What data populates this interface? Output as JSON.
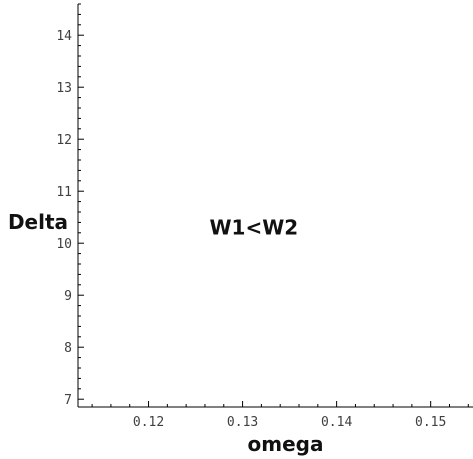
{
  "chart_data": {
    "type": "scatter",
    "title": "",
    "xlabel": "omega",
    "ylabel": "Delta",
    "xlim": [
      0.1125,
      0.1545
    ],
    "ylim": [
      6.85,
      14.6
    ],
    "x_ticks": [
      0.12,
      0.13,
      0.14,
      0.15
    ],
    "x_tick_labels": [
      "0.12",
      "0.13",
      "0.14",
      "0.15"
    ],
    "y_ticks": [
      7,
      8,
      9,
      10,
      11,
      12,
      13,
      14
    ],
    "y_tick_labels": [
      "7",
      "8",
      "9",
      "10",
      "11",
      "12",
      "13",
      "14"
    ],
    "x_minor_step": 0.002,
    "y_minor_step": 0.2,
    "series": [],
    "annotations": [
      {
        "text": "W1<W2",
        "x": 0.1312,
        "y": 10.3
      }
    ],
    "grid": false,
    "colors": {
      "axis": "#000000",
      "text": "#111111",
      "tick_label": "#404040",
      "background": "#ffffff"
    }
  }
}
